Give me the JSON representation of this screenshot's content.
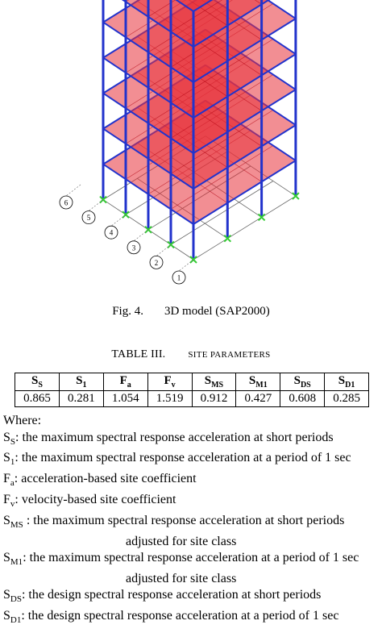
{
  "figure": {
    "caption_label": "Fig. 4.",
    "caption_text": "3D model (SAP2000)"
  },
  "colors": {
    "slab_fill": "#e8313a",
    "slab_edge": "#b00010",
    "column": "#2233cc",
    "support": "#33cc33",
    "grid_line": "#666666"
  },
  "table": {
    "title": "TABLE III.",
    "subtitle": "SITE PARAMETERS",
    "headers": [
      {
        "main": "S",
        "sub": "S"
      },
      {
        "main": "S",
        "sub": "1"
      },
      {
        "main": "F",
        "sub": "a"
      },
      {
        "main": "F",
        "sub": "v"
      },
      {
        "main": "S",
        "sub": "MS"
      },
      {
        "main": "S",
        "sub": "M1"
      },
      {
        "main": "S",
        "sub": "DS"
      },
      {
        "main": "S",
        "sub": "D1"
      }
    ],
    "values": [
      "0.865",
      "0.281",
      "1.054",
      "1.519",
      "0.912",
      "0.427",
      "0.608",
      "0.285"
    ]
  },
  "where": {
    "heading": "Where:",
    "defs": [
      {
        "sym": "S",
        "sub": "S",
        "text": ": the maximum spectral response acceleration at short periods"
      },
      {
        "sym": "S",
        "sub": "1",
        "text": ": the maximum spectral response acceleration at a period of 1 sec"
      },
      {
        "sym": "F",
        "sub": "a",
        "text": ": acceleration-based site coefficient"
      },
      {
        "sym": "F",
        "sub": "v",
        "text": ": velocity-based site coefficient"
      },
      {
        "sym": "S",
        "sub": "MS",
        "text": " :  the  maximum  spectral  response  acceleration  at  short  periods",
        "cont": "adjusted for site class"
      },
      {
        "sym": "S",
        "sub": "M1",
        "text": ": the maximum spectral response acceleration at a period of 1 sec",
        "cont": "adjusted for site class"
      },
      {
        "sym": "S",
        "sub": "DS",
        "text": ": the design spectral response acceleration at short periods"
      },
      {
        "sym": "S",
        "sub": "D1",
        "text": ": the design spectral response acceleration at a period of 1 sec"
      }
    ]
  },
  "grid_labels": [
    "1",
    "2",
    "3",
    "4",
    "5",
    "6"
  ]
}
